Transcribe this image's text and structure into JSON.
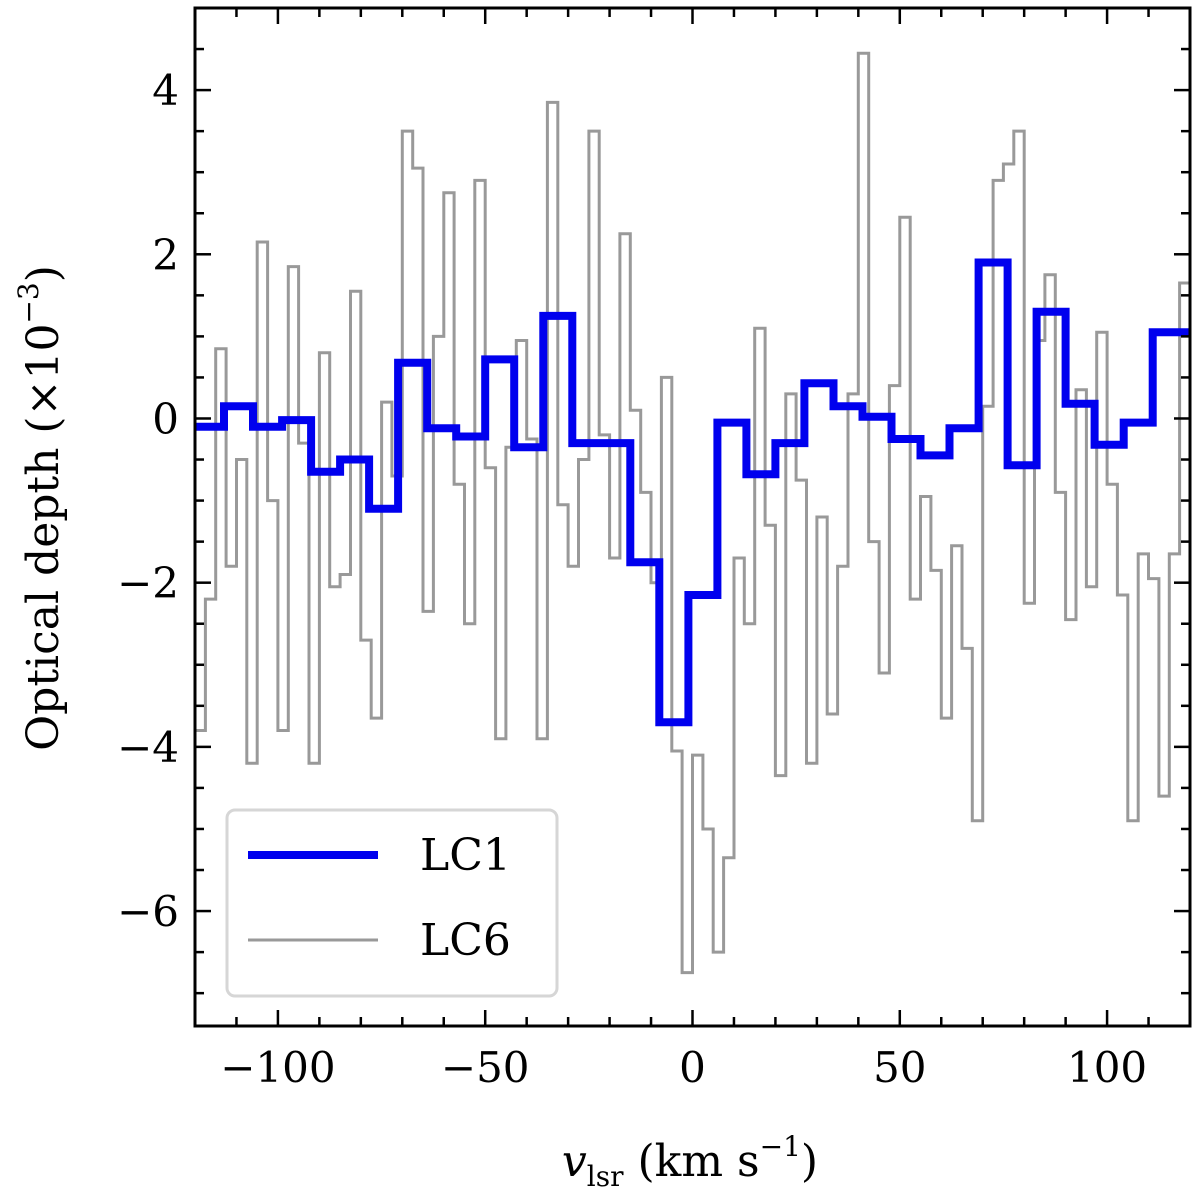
{
  "chart_data": {
    "type": "step-line",
    "xlabel_main": "v",
    "xlabel_sub": "lsr",
    "xlabel_units": "(km s",
    "xlabel_exp": "−1",
    "xlabel_close": ")",
    "ylabel_main": "Optical depth (×10",
    "ylabel_exp": "−3",
    "ylabel_close": ")",
    "xlim": [
      -120,
      120
    ],
    "ylim": [
      -7.4,
      5.0
    ],
    "xticks": [
      -100,
      -50,
      0,
      50,
      100
    ],
    "xtick_labels": [
      "−100",
      "−50",
      "0",
      "50",
      "100"
    ],
    "yticks": [
      -6,
      -4,
      -2,
      0,
      2,
      4
    ],
    "ytick_labels": [
      "−6",
      "−4",
      "−2",
      "0",
      "2",
      "4"
    ],
    "legend": {
      "position": "lower-left",
      "entries": [
        "LC1",
        "LC6"
      ]
    },
    "series": [
      {
        "name": "LC1",
        "color": "#0000ee",
        "edges": [
          -120,
          -113,
          -106,
          -99,
          -92,
          -85,
          -78,
          -71,
          -64,
          -57,
          -50,
          -43,
          -36,
          -29,
          -22,
          -15,
          -8,
          -1,
          6,
          13,
          20,
          27,
          34,
          41,
          48,
          55,
          62,
          69,
          76,
          83,
          90,
          97,
          104,
          111,
          118,
          120
        ],
        "values": [
          -0.1,
          0.15,
          -0.1,
          -0.02,
          -0.65,
          -0.5,
          -1.1,
          0.68,
          -0.12,
          -0.22,
          0.72,
          -0.35,
          1.25,
          -0.3,
          -0.3,
          -1.75,
          -3.7,
          -2.15,
          -0.05,
          -0.68,
          -0.3,
          0.43,
          0.15,
          0.02,
          -0.25,
          -0.45,
          -0.12,
          1.9,
          -0.57,
          1.3,
          0.18,
          -0.32,
          -0.05,
          1.05,
          1.05
        ]
      },
      {
        "name": "LC6",
        "color": "#999999",
        "edges": [
          -120,
          -117.5,
          -115,
          -112.5,
          -110,
          -107.5,
          -105,
          -102.5,
          -100,
          -97.5,
          -95,
          -92.5,
          -90,
          -87.5,
          -85,
          -82.5,
          -80,
          -77.5,
          -75,
          -72.5,
          -70,
          -67.5,
          -65,
          -62.5,
          -60,
          -57.5,
          -55,
          -52.5,
          -50,
          -47.5,
          -45,
          -42.5,
          -40,
          -37.5,
          -35,
          -32.5,
          -30,
          -27.5,
          -25,
          -22.5,
          -20,
          -17.5,
          -15,
          -12.5,
          -10,
          -7.5,
          -5,
          -2.5,
          0,
          2.5,
          5,
          7.5,
          10,
          12.5,
          15,
          17.5,
          20,
          22.5,
          25,
          27.5,
          30,
          32.5,
          35,
          37.5,
          40,
          42.5,
          45,
          47.5,
          50,
          52.5,
          55,
          57.5,
          60,
          62.5,
          65,
          67.5,
          70,
          72.5,
          75,
          77.5,
          80,
          82.5,
          85,
          87.5,
          90,
          92.5,
          95,
          97.5,
          100,
          102.5,
          105,
          107.5,
          110,
          112.5,
          115,
          117.5,
          120
        ],
        "values": [
          -3.8,
          -2.2,
          0.85,
          -1.8,
          -0.5,
          -4.2,
          2.15,
          -1.0,
          -3.8,
          1.85,
          -0.3,
          -4.2,
          0.8,
          -2.05,
          -1.9,
          1.55,
          -2.7,
          -3.65,
          0.2,
          -0.7,
          3.5,
          3.05,
          -2.35,
          1.0,
          2.75,
          -0.8,
          -2.5,
          2.9,
          -0.6,
          -3.9,
          -0.35,
          0.95,
          -0.25,
          -3.9,
          3.85,
          -1.05,
          -1.8,
          -0.5,
          3.5,
          -0.2,
          -1.7,
          2.25,
          0.1,
          -0.9,
          -2.0,
          0.5,
          -4.05,
          -6.75,
          -4.1,
          -5.0,
          -6.5,
          -5.35,
          -1.7,
          -2.5,
          1.1,
          -1.3,
          -4.35,
          0.3,
          -0.75,
          -4.2,
          -1.2,
          -3.6,
          -1.8,
          0.3,
          4.45,
          -1.5,
          -3.1,
          0.4,
          2.45,
          -2.2,
          -0.95,
          -1.85,
          -3.65,
          -1.55,
          -2.8,
          -4.9,
          0.15,
          2.9,
          3.1,
          3.5,
          -2.25,
          0.95,
          1.75,
          -0.9,
          -2.45,
          0.35,
          -2.05,
          1.05,
          -0.8,
          -2.15,
          -4.9,
          -1.65,
          -1.95,
          -4.6,
          -1.65,
          1.65,
          -1.2
        ]
      }
    ]
  }
}
